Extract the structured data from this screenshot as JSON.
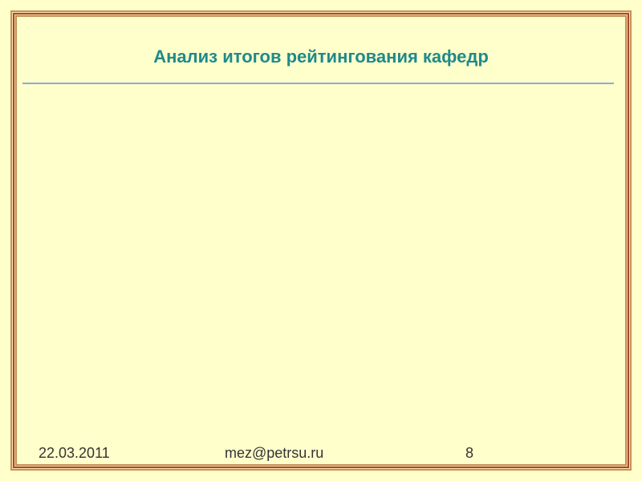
{
  "slide": {
    "title": "Анализ итогов рейтингования кафедр",
    "footer": {
      "date": "22.03.2011",
      "email": "mez@petrsu.ru",
      "page_number": "8"
    }
  }
}
